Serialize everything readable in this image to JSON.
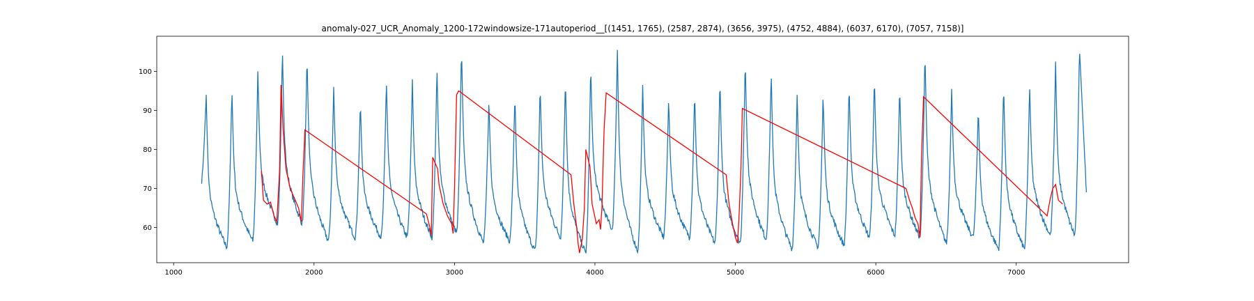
{
  "chart_data": {
    "type": "line",
    "title": "anomaly-027_UCR_Anomaly_1200-172windowsize-171autoperiod__[(1451, 1765), (2587, 2874), (3656, 3975), (4752, 4884), (6037, 6170), (7057, 7158)]",
    "xlabel": "",
    "ylabel": "",
    "xlim": [
      880,
      7800
    ],
    "ylim": [
      51,
      109
    ],
    "xticks": [
      1000,
      2000,
      3000,
      4000,
      5000,
      6000,
      7000
    ],
    "yticks": [
      60,
      70,
      80,
      90,
      100
    ],
    "grid": false,
    "colors": {
      "series": "#1f77b4",
      "anomaly": "#ff0000"
    },
    "signal": {
      "x_start": 1200,
      "x_end": 7500,
      "start_value": 72,
      "end_value": 68.5,
      "baseline": 60,
      "cycles": [
        {
          "peak_x": 1232,
          "peak": 94,
          "trough": 55
        },
        {
          "peak_x": 1415,
          "peak": 95.5,
          "trough": 56.5
        },
        {
          "peak_x": 1600,
          "peak": 100,
          "trough": 61
        },
        {
          "peak_x": 1775,
          "peak": 106,
          "trough": 61
        },
        {
          "peak_x": 1950,
          "peak": 104.5,
          "trough": 56.5
        },
        {
          "peak_x": 2140,
          "peak": 96,
          "trough": 57.5
        },
        {
          "peak_x": 2330,
          "peak": 92.5,
          "trough": 57.5
        },
        {
          "peak_x": 2515,
          "peak": 98,
          "trough": 57.5
        },
        {
          "peak_x": 2700,
          "peak": 98,
          "trough": 57.5
        },
        {
          "peak_x": 2875,
          "peak": 101.5,
          "trough": 58.5
        },
        {
          "peak_x": 3050,
          "peak": 106.5,
          "trough": 56
        },
        {
          "peak_x": 3245,
          "peak": 93,
          "trough": 56.5
        },
        {
          "peak_x": 3430,
          "peak": 94.5,
          "trough": 54
        },
        {
          "peak_x": 3610,
          "peak": 97,
          "trough": 57.5
        },
        {
          "peak_x": 3790,
          "peak": 98.5,
          "trough": 53.5
        },
        {
          "peak_x": 3970,
          "peak": 102,
          "trough": 59.5
        },
        {
          "peak_x": 4160,
          "peak": 105.5,
          "trough": 54
        },
        {
          "peak_x": 4340,
          "peak": 96.5,
          "trough": 57.5
        },
        {
          "peak_x": 4525,
          "peak": 93.5,
          "trough": 57.5
        },
        {
          "peak_x": 4710,
          "peak": 95,
          "trough": 56
        },
        {
          "peak_x": 4890,
          "peak": 98.5,
          "trough": 56
        },
        {
          "peak_x": 5070,
          "peak": 103.5,
          "trough": 57
        },
        {
          "peak_x": 5255,
          "peak": 100,
          "trough": 54.5
        },
        {
          "peak_x": 5440,
          "peak": 94,
          "trough": 55
        },
        {
          "peak_x": 5625,
          "peak": 94.5,
          "trough": 55.5
        },
        {
          "peak_x": 5810,
          "peak": 97,
          "trough": 57.5
        },
        {
          "peak_x": 5990,
          "peak": 99,
          "trough": 58
        },
        {
          "peak_x": 6170,
          "peak": 96.5,
          "trough": 57.5
        },
        {
          "peak_x": 6350,
          "peak": 105.5,
          "trough": 56
        },
        {
          "peak_x": 6540,
          "peak": 95.5,
          "trough": 57.5
        },
        {
          "peak_x": 6730,
          "peak": 91,
          "trough": 54.5
        },
        {
          "peak_x": 6910,
          "peak": 97,
          "trough": 54.5
        },
        {
          "peak_x": 7095,
          "peak": 97,
          "trough": 58
        },
        {
          "peak_x": 7280,
          "peak": 102.5,
          "trough": 58
        },
        {
          "peak_x": 7450,
          "peak": 106,
          "trough": 68.5
        }
      ]
    },
    "anomaly_series": {
      "name": "",
      "points": [
        [
          1625,
          74.5
        ],
        [
          1640,
          67
        ],
        [
          1665,
          66
        ],
        [
          1690,
          66.5
        ],
        [
          1715,
          63
        ],
        [
          1735,
          61.5
        ],
        [
          1755,
          75
        ],
        [
          1765,
          96.5
        ],
        [
          1780,
          85
        ],
        [
          1800,
          75
        ],
        [
          1830,
          70
        ],
        [
          1860,
          67.5
        ],
        [
          1890,
          65
        ],
        [
          1910,
          61.5
        ],
        [
          1920,
          73
        ],
        [
          1935,
          85
        ],
        [
          2800,
          63.5
        ],
        [
          2825,
          60
        ],
        [
          2835,
          58
        ],
        [
          2845,
          78
        ],
        [
          2880,
          75
        ],
        [
          2890,
          71
        ],
        [
          2920,
          66
        ],
        [
          2950,
          63
        ],
        [
          2980,
          61
        ],
        [
          2990,
          58.5
        ],
        [
          3000,
          70
        ],
        [
          3015,
          94
        ],
        [
          3030,
          95
        ],
        [
          3830,
          73.5
        ],
        [
          3850,
          66
        ],
        [
          3870,
          60
        ],
        [
          3880,
          56
        ],
        [
          3890,
          53.5
        ],
        [
          3910,
          57
        ],
        [
          3925,
          65
        ],
        [
          3935,
          80
        ],
        [
          3965,
          75.5
        ],
        [
          3980,
          66
        ],
        [
          4010,
          61
        ],
        [
          4030,
          62
        ],
        [
          4040,
          59.5
        ],
        [
          4050,
          65
        ],
        [
          4065,
          85
        ],
        [
          4080,
          94.5
        ],
        [
          4935,
          73.5
        ],
        [
          4955,
          66
        ],
        [
          4980,
          61
        ],
        [
          5000,
          57.5
        ],
        [
          5015,
          56
        ],
        [
          5025,
          62
        ],
        [
          5040,
          75
        ],
        [
          5050,
          90.5
        ],
        [
          6215,
          70
        ],
        [
          6240,
          67
        ],
        [
          6260,
          65
        ],
        [
          6280,
          62.5
        ],
        [
          6300,
          61
        ],
        [
          6315,
          57.5
        ],
        [
          6325,
          78
        ],
        [
          6340,
          93.5
        ],
        [
          7220,
          63
        ],
        [
          7240,
          67
        ],
        [
          7260,
          70
        ],
        [
          7280,
          71
        ],
        [
          7300,
          67
        ],
        [
          7330,
          66
        ]
      ]
    }
  }
}
